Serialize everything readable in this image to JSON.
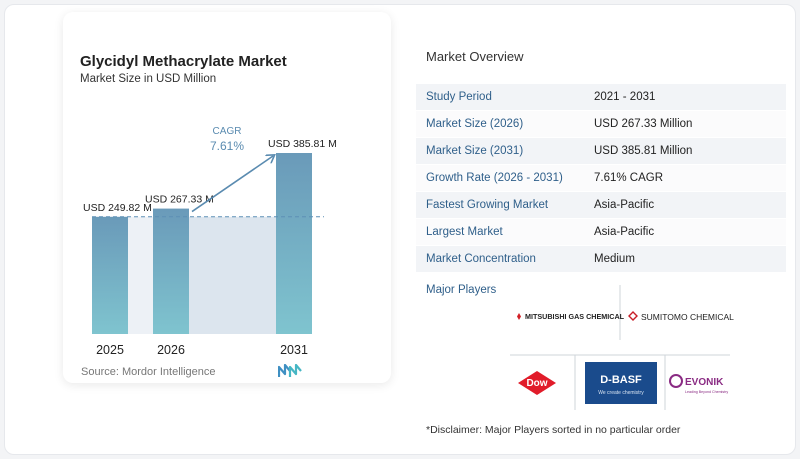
{
  "chart_data": {
    "type": "bar",
    "title": "Glycidyl Methacrylate Market",
    "subtitle": "Market Size in USD Million",
    "categories": [
      "2025",
      "2026",
      "2031"
    ],
    "values": [
      249.82,
      267.33,
      385.81
    ],
    "value_labels": [
      "USD 249.82 M",
      "USD 267.33 M",
      "USD 385.81 M"
    ],
    "cagr_label": "CAGR",
    "cagr_value": "7.61%",
    "xlabel": "",
    "ylabel": "",
    "grid": false,
    "colors": {
      "bar_top": "#6a9ab9",
      "bar_bottom": "#7fc4cf",
      "band": "#dce5ee",
      "arrow": "#5a8bb0",
      "dashed_line": "#5d8fb5"
    }
  },
  "source": "Source:  Mordor Intelligence",
  "overview": {
    "title": "Market Overview",
    "rows": [
      {
        "label": "Study Period",
        "value": "2021 - 2031"
      },
      {
        "label": "Market Size (2026)",
        "value": "USD 267.33 Million"
      },
      {
        "label": "Market Size (2031)",
        "value": "USD 385.81 Million"
      },
      {
        "label": "Growth Rate (2026 - 2031)",
        "value": "7.61% CAGR"
      },
      {
        "label": "Fastest Growing Market",
        "value": "Asia-Pacific"
      },
      {
        "label": "Largest Market",
        "value": "Asia-Pacific"
      },
      {
        "label": "Market Concentration",
        "value": "Medium"
      }
    ],
    "players_title": "Major Players",
    "players": {
      "mitsubishi": "MITSUBISHI GAS CHEMICAL",
      "sumitomo": "SUMITOMO CHEMICAL",
      "dow": "Dow",
      "basf": "D-BASF",
      "basf_tag": "We create chemistry",
      "evonik": "EVONIK",
      "evonik_tag": "Leading Beyond Chemistry"
    },
    "disclaimer": "*Disclaimer: Major Players sorted in no particular order"
  }
}
